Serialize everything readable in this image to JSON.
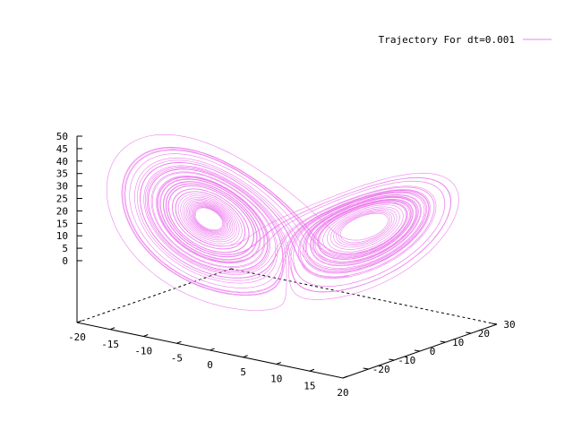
{
  "chart_data": {
    "type": "line",
    "title": "",
    "legend": {
      "placement": "top-right",
      "entries": [
        "Trajectory For dt=0.001"
      ]
    },
    "series": [
      {
        "name": "Trajectory For dt=0.001",
        "color": "#ee82ee",
        "description_of_shape": "Lorenz attractor: two lobes centred near (-8,-8,27) and (8,8,27)"
      }
    ],
    "x_axis": {
      "ticks": [
        "-20",
        "-15",
        "-10",
        "-5",
        "0",
        "5",
        "10",
        "15",
        "20"
      ],
      "range": [
        -20,
        20
      ]
    },
    "y_axis": {
      "ticks": [
        "-20",
        "-10",
        "0",
        "10",
        "20",
        "30"
      ],
      "range": [
        -30,
        30
      ]
    },
    "z_axis": {
      "ticks": [
        "0",
        "5",
        "10",
        "15",
        "20",
        "25",
        "30",
        "35",
        "40",
        "45",
        "50"
      ],
      "range": [
        0,
        50
      ]
    },
    "grid": false
  }
}
